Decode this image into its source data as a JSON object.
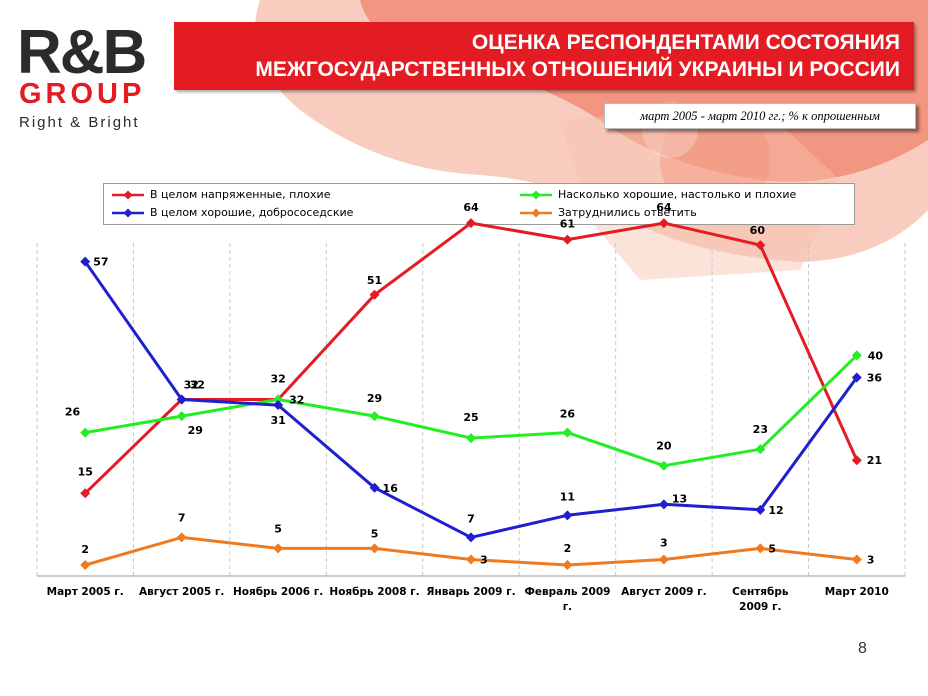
{
  "header": {
    "logo_main": "R&B",
    "logo_group": "GROUP",
    "logo_tagline": "Right & Bright",
    "title_line1": "ОЦЕНКА РЕСПОНДЕНТАМИ СОСТОЯНИЯ",
    "title_line2": "МЕЖГОСУДАРСТВЕННЫХ ОТНОШЕНИЙ УКРАИНЫ И РОССИИ",
    "subtitle": "март 2005 - март 2010 гг.; % к опрошенным"
  },
  "colors": {
    "brand_red": "#e31b23",
    "series_red": "#e31b23",
    "series_green": "#22ee22",
    "series_blue": "#1f1fd0",
    "series_orange": "#f07a22"
  },
  "page_number": "8",
  "chart_data": {
    "type": "line",
    "categories": [
      [
        "Март 2005 г."
      ],
      [
        "Август 2005 г."
      ],
      [
        "Ноябрь 2006 г."
      ],
      [
        "Ноябрь 2008 г."
      ],
      [
        "Январь 2009 г."
      ],
      [
        "Февраль 2009",
        "г."
      ],
      [
        "Август 2009 г."
      ],
      [
        "Сентябрь",
        "2009 г."
      ],
      [
        "Март 2010"
      ]
    ],
    "ylim": [
      0,
      70
    ],
    "grid": "vertical dashed",
    "legend_position": "top",
    "series": [
      {
        "name": "В целом  напряженные, плохие",
        "color": "#e31b23",
        "values": [
          15,
          32,
          32,
          51,
          64,
          61,
          64,
          60,
          21
        ]
      },
      {
        "name": "Насколько хорошие, настолько и плохие",
        "color": "#22ee22",
        "values": [
          26,
          29,
          32,
          29,
          25,
          26,
          20,
          23,
          40
        ]
      },
      {
        "name": "В целом хорошие, добрососедские",
        "color": "#1f1fd0",
        "values": [
          57,
          32,
          31,
          16,
          7,
          11,
          13,
          12,
          36
        ]
      },
      {
        "name": "Затруднились ответить",
        "color": "#f07a22",
        "values": [
          2,
          7,
          5,
          5,
          3,
          2,
          3,
          5,
          3
        ]
      }
    ]
  }
}
